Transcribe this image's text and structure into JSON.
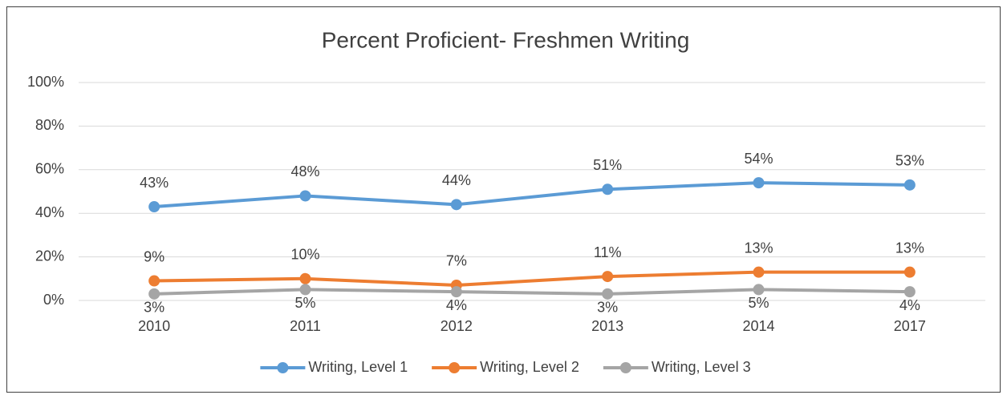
{
  "chart_data": {
    "type": "line",
    "title": "Percent Proficient- Freshmen Writing",
    "categories": [
      "2010",
      "2011",
      "2012",
      "2013",
      "2014",
      "2017"
    ],
    "series": [
      {
        "name": "Writing, Level 1",
        "color": "#5b9bd5",
        "values": [
          43,
          48,
          44,
          51,
          54,
          53
        ],
        "value_labels": [
          "43%",
          "48%",
          "44%",
          "51%",
          "54%",
          "53%"
        ]
      },
      {
        "name": "Writing, Level 2",
        "color": "#ed7d31",
        "values": [
          9,
          10,
          7,
          11,
          13,
          13
        ],
        "value_labels": [
          "9%",
          "10%",
          "7%",
          "11%",
          "13%",
          "13%"
        ]
      },
      {
        "name": "Writing, Level 3",
        "color": "#a5a5a5",
        "values": [
          3,
          5,
          4,
          3,
          5,
          4
        ],
        "value_labels": [
          "3%",
          "5%",
          "4%",
          "3%",
          "5%",
          "4%"
        ]
      }
    ],
    "ylim": [
      0,
      100
    ],
    "yticks": [
      {
        "value": 0,
        "label": "0%"
      },
      {
        "value": 20,
        "label": "20%"
      },
      {
        "value": 40,
        "label": "40%"
      },
      {
        "value": 60,
        "label": "60%"
      },
      {
        "value": 80,
        "label": "80%"
      },
      {
        "value": 100,
        "label": "100%"
      }
    ],
    "grid": true,
    "legend": "bottom"
  }
}
